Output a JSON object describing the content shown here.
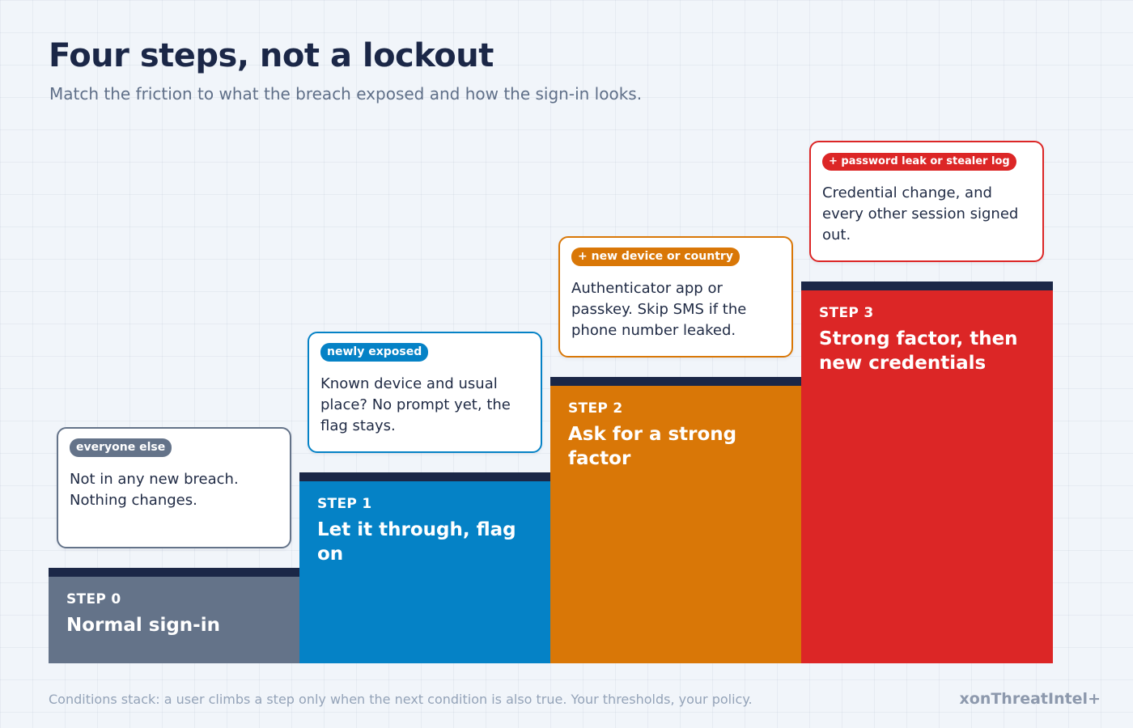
{
  "header": {
    "title": "Four steps, not a lockout",
    "subtitle": "Match the friction to what the breach exposed and how the sign-in looks."
  },
  "colors": {
    "step0": "#647389",
    "step1": "#0582c6",
    "step2": "#d97707",
    "step3": "#dc2626",
    "step_top_bar": "#1b2747"
  },
  "steps": [
    {
      "label": "STEP 0",
      "title": "Normal sign-in",
      "condition_badge": "everyone else",
      "description": "Not in any new breach. Nothing changes."
    },
    {
      "label": "STEP 1",
      "title": "Let it through, flag on",
      "condition_badge": "newly exposed",
      "description": "Known device and usual place? No prompt yet, the flag stays."
    },
    {
      "label": "STEP 2",
      "title": "Ask for a strong factor",
      "condition_badge": "+ new device or country",
      "description": "Authenticator app or passkey. Skip SMS if the phone number leaked."
    },
    {
      "label": "STEP 3",
      "title": "Strong factor, then new credentials",
      "condition_badge": "+ password leak or stealer log",
      "description": "Credential change, and every other session signed out."
    }
  ],
  "footer": {
    "note": "Conditions stack: a user climbs a step only when the next condition is also true. Your thresholds, your policy.",
    "brand": "xonThreatIntel+"
  }
}
